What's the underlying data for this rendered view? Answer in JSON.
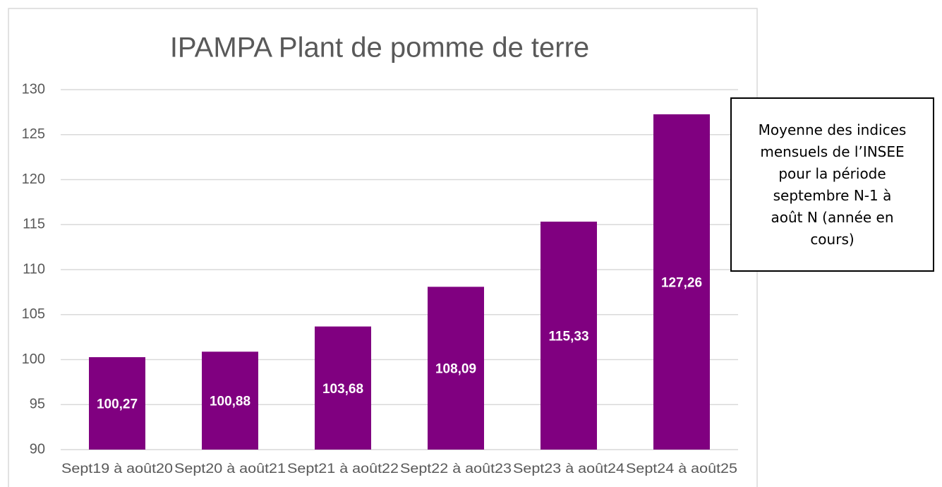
{
  "chart_data": {
    "type": "bar",
    "title": "IPAMPA Plant de pomme de terre",
    "categories": [
      "Sept19 à août20",
      "Sept20 à août21",
      "Sept21 à août22",
      "Sept22 à août23",
      "Sept23 à août24",
      "Sept24 à août25"
    ],
    "values": [
      100.27,
      100.88,
      103.68,
      108.09,
      115.33,
      127.26
    ],
    "value_labels": [
      "100,27",
      "100,88",
      "103,68",
      "108,09",
      "115,33",
      "127,26"
    ],
    "color": "#800080",
    "ylim": [
      90,
      130
    ],
    "yticks": [
      90,
      95,
      100,
      105,
      110,
      115,
      120,
      125,
      130
    ],
    "grid": true,
    "annotation": [
      "Moyenne des indices",
      "mensuels de l’INSEE",
      "pour la période",
      "septembre N-1 à",
      "août N (année en",
      "cours)"
    ]
  }
}
